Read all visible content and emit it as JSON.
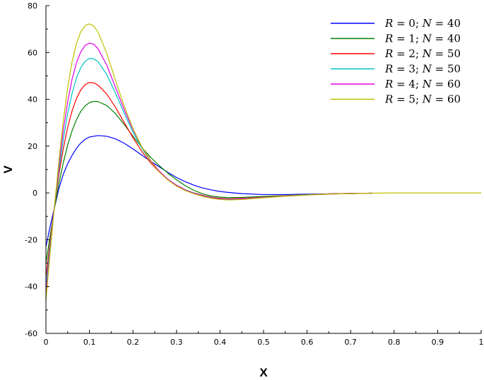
{
  "chart_data": {
    "type": "line",
    "title": "",
    "xlabel": "X",
    "ylabel": "V",
    "xlim": [
      0,
      1
    ],
    "ylim": [
      -60,
      80
    ],
    "x_ticks": [
      "0",
      "0.1",
      "0.2",
      "0.3",
      "0.4",
      "0.5",
      "0.6",
      "0.7",
      "0.8",
      "0.9",
      "1"
    ],
    "y_ticks": [
      "-60",
      "-40",
      "-20",
      "0",
      "20",
      "40",
      "60",
      "80"
    ],
    "grid": false,
    "legend_position": "top-right",
    "series": [
      {
        "name": "R = 0; N = 40",
        "legend": {
          "r": "0",
          "n": "40"
        },
        "color": "#0000ff",
        "points": [
          [
            0,
            -23
          ],
          [
            0.01,
            -14
          ],
          [
            0.02,
            -6
          ],
          [
            0.03,
            2
          ],
          [
            0.04,
            8
          ],
          [
            0.05,
            12.5
          ],
          [
            0.06,
            16
          ],
          [
            0.07,
            19
          ],
          [
            0.08,
            21.3
          ],
          [
            0.09,
            22.9
          ],
          [
            0.1,
            23.9
          ],
          [
            0.12,
            24.5
          ],
          [
            0.14,
            24.2
          ],
          [
            0.16,
            23.1
          ],
          [
            0.18,
            21.2
          ],
          [
            0.2,
            18.8
          ],
          [
            0.22,
            16.2
          ],
          [
            0.24,
            13.6
          ],
          [
            0.26,
            11.2
          ],
          [
            0.28,
            8.8
          ],
          [
            0.3,
            6.6
          ],
          [
            0.32,
            4.8
          ],
          [
            0.34,
            3.3
          ],
          [
            0.36,
            2.1
          ],
          [
            0.38,
            1.3
          ],
          [
            0.4,
            0.6
          ],
          [
            0.42,
            0.2
          ],
          [
            0.45,
            -0.3
          ],
          [
            0.5,
            -0.7
          ],
          [
            0.55,
            -0.7
          ],
          [
            0.6,
            -0.5
          ],
          [
            0.65,
            -0.4
          ],
          [
            0.7,
            -0.2
          ],
          [
            0.75,
            -0.1
          ]
        ]
      },
      {
        "name": "R = 1; N = 40",
        "legend": {
          "r": "1",
          "n": "40"
        },
        "color": "#008000",
        "points": [
          [
            0,
            -30
          ],
          [
            0.01,
            -18
          ],
          [
            0.02,
            -6
          ],
          [
            0.03,
            4
          ],
          [
            0.04,
            13
          ],
          [
            0.05,
            20.5
          ],
          [
            0.06,
            26.5
          ],
          [
            0.07,
            31.2
          ],
          [
            0.08,
            34.8
          ],
          [
            0.09,
            37.2
          ],
          [
            0.1,
            38.6
          ],
          [
            0.11,
            39.1
          ],
          [
            0.12,
            39
          ],
          [
            0.14,
            37.3
          ],
          [
            0.16,
            33.8
          ],
          [
            0.18,
            29.2
          ],
          [
            0.2,
            24.2
          ],
          [
            0.22,
            19.5
          ],
          [
            0.24,
            15.3
          ],
          [
            0.26,
            11.7
          ],
          [
            0.28,
            8.5
          ],
          [
            0.3,
            5.6
          ],
          [
            0.32,
            3.1
          ],
          [
            0.34,
            1.1
          ],
          [
            0.36,
            -0.4
          ],
          [
            0.38,
            -1.3
          ],
          [
            0.4,
            -1.8
          ],
          [
            0.42,
            -2
          ],
          [
            0.45,
            -1.9
          ],
          [
            0.5,
            -1.5
          ],
          [
            0.55,
            -1.1
          ],
          [
            0.6,
            -0.7
          ],
          [
            0.65,
            -0.4
          ],
          [
            0.7,
            -0.2
          ],
          [
            0.75,
            -0.1
          ]
        ]
      },
      {
        "name": "R = 2; N = 50",
        "legend": {
          "r": "2",
          "n": "50"
        },
        "color": "#ff0000",
        "points": [
          [
            0,
            -36
          ],
          [
            0.01,
            -20
          ],
          [
            0.02,
            -5
          ],
          [
            0.03,
            8
          ],
          [
            0.04,
            19
          ],
          [
            0.05,
            28
          ],
          [
            0.06,
            35
          ],
          [
            0.07,
            40.3
          ],
          [
            0.08,
            44
          ],
          [
            0.09,
            46.2
          ],
          [
            0.1,
            47.2
          ],
          [
            0.11,
            47
          ],
          [
            0.12,
            46
          ],
          [
            0.14,
            42.2
          ],
          [
            0.16,
            36.5
          ],
          [
            0.18,
            30
          ],
          [
            0.2,
            23.6
          ],
          [
            0.22,
            17.8
          ],
          [
            0.24,
            13
          ],
          [
            0.26,
            9
          ],
          [
            0.28,
            5.8
          ],
          [
            0.3,
            3.3
          ],
          [
            0.32,
            1.4
          ],
          [
            0.34,
            0
          ],
          [
            0.36,
            -1
          ],
          [
            0.38,
            -1.8
          ],
          [
            0.4,
            -2.3
          ],
          [
            0.42,
            -2.5
          ],
          [
            0.45,
            -2.3
          ],
          [
            0.5,
            -1.8
          ],
          [
            0.55,
            -1.2
          ],
          [
            0.6,
            -0.8
          ],
          [
            0.65,
            -0.4
          ],
          [
            0.7,
            -0.2
          ],
          [
            0.75,
            -0.1
          ]
        ]
      },
      {
        "name": "R = 3; N = 50",
        "legend": {
          "r": "3",
          "n": "50"
        },
        "color": "#00c0c0",
        "points": [
          [
            0,
            -40
          ],
          [
            0.01,
            -22
          ],
          [
            0.02,
            -5
          ],
          [
            0.03,
            10
          ],
          [
            0.04,
            23
          ],
          [
            0.05,
            34
          ],
          [
            0.06,
            42.5
          ],
          [
            0.07,
            49
          ],
          [
            0.08,
            53.5
          ],
          [
            0.09,
            56.2
          ],
          [
            0.1,
            57.5
          ],
          [
            0.11,
            57.3
          ],
          [
            0.12,
            56
          ],
          [
            0.14,
            50.5
          ],
          [
            0.16,
            42.5
          ],
          [
            0.18,
            34
          ],
          [
            0.2,
            26
          ],
          [
            0.22,
            19.2
          ],
          [
            0.24,
            13.6
          ],
          [
            0.26,
            9.2
          ],
          [
            0.28,
            5.8
          ],
          [
            0.3,
            3.2
          ],
          [
            0.32,
            1.3
          ],
          [
            0.34,
            -0.1
          ],
          [
            0.36,
            -1.2
          ],
          [
            0.38,
            -2
          ],
          [
            0.4,
            -2.5
          ],
          [
            0.42,
            -2.7
          ],
          [
            0.45,
            -2.5
          ],
          [
            0.5,
            -1.9
          ],
          [
            0.55,
            -1.3
          ],
          [
            0.6,
            -0.8
          ],
          [
            0.65,
            -0.5
          ],
          [
            0.7,
            -0.3
          ],
          [
            0.75,
            -0.1
          ]
        ]
      },
      {
        "name": "R = 4; N = 60",
        "legend": {
          "r": "4",
          "n": "60"
        },
        "color": "#e000e0",
        "points": [
          [
            0,
            -43
          ],
          [
            0.01,
            -24
          ],
          [
            0.02,
            -5
          ],
          [
            0.03,
            12
          ],
          [
            0.04,
            27
          ],
          [
            0.05,
            39
          ],
          [
            0.06,
            48.5
          ],
          [
            0.07,
            55.5
          ],
          [
            0.08,
            60.2
          ],
          [
            0.09,
            63
          ],
          [
            0.1,
            64
          ],
          [
            0.11,
            63.5
          ],
          [
            0.12,
            61.5
          ],
          [
            0.14,
            54.5
          ],
          [
            0.16,
            45
          ],
          [
            0.18,
            35.5
          ],
          [
            0.2,
            27
          ],
          [
            0.22,
            19.8
          ],
          [
            0.24,
            14
          ],
          [
            0.26,
            9.4
          ],
          [
            0.28,
            5.8
          ],
          [
            0.3,
            3.2
          ],
          [
            0.32,
            1.2
          ],
          [
            0.34,
            -0.2
          ],
          [
            0.36,
            -1.3
          ],
          [
            0.38,
            -2.1
          ],
          [
            0.4,
            -2.6
          ],
          [
            0.42,
            -2.8
          ],
          [
            0.45,
            -2.6
          ],
          [
            0.5,
            -2
          ],
          [
            0.55,
            -1.4
          ],
          [
            0.6,
            -0.9
          ],
          [
            0.65,
            -0.5
          ],
          [
            0.7,
            -0.3
          ],
          [
            0.75,
            -0.1
          ]
        ]
      },
      {
        "name": "R = 5; N = 60",
        "legend": {
          "r": "5",
          "n": "60"
        },
        "color": "#c0c000",
        "points": [
          [
            0,
            -46
          ],
          [
            0.01,
            -25
          ],
          [
            0.02,
            -5
          ],
          [
            0.03,
            14
          ],
          [
            0.04,
            31
          ],
          [
            0.05,
            45
          ],
          [
            0.06,
            56
          ],
          [
            0.07,
            63.8
          ],
          [
            0.08,
            68.8
          ],
          [
            0.09,
            71.5
          ],
          [
            0.1,
            72.2
          ],
          [
            0.11,
            71.3
          ],
          [
            0.12,
            68.6
          ],
          [
            0.14,
            59.5
          ],
          [
            0.16,
            48
          ],
          [
            0.18,
            37
          ],
          [
            0.2,
            27.5
          ],
          [
            0.22,
            19.8
          ],
          [
            0.24,
            13.7
          ],
          [
            0.26,
            9
          ],
          [
            0.28,
            5.5
          ],
          [
            0.3,
            2.9
          ],
          [
            0.32,
            1
          ],
          [
            0.34,
            -0.4
          ],
          [
            0.36,
            -1.5
          ],
          [
            0.38,
            -2.3
          ],
          [
            0.4,
            -2.8
          ],
          [
            0.42,
            -3
          ],
          [
            0.45,
            -2.8
          ],
          [
            0.5,
            -2.1
          ],
          [
            0.55,
            -1.4
          ],
          [
            0.6,
            -0.9
          ],
          [
            0.65,
            -0.5
          ],
          [
            0.7,
            -0.3
          ],
          [
            0.75,
            -0.1
          ],
          [
            0.8,
            0
          ],
          [
            1,
            0
          ]
        ]
      }
    ]
  }
}
